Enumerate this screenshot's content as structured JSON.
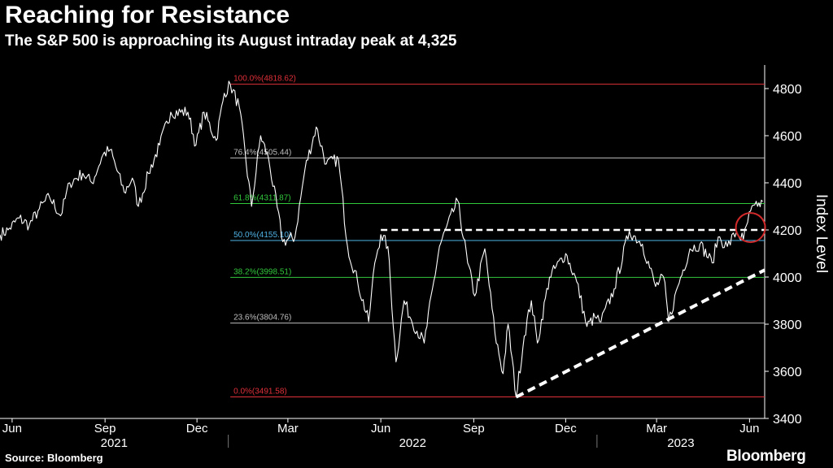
{
  "title": "Reaching for Resistance",
  "subtitle": "The S&P 500 is approaching its August intraday peak at 4,325",
  "source": "Source: Bloomberg",
  "logo": "Bloomberg",
  "colors": {
    "background": "#000000",
    "price_line": "#ffffff",
    "fib_0_100": "#e0303a",
    "fib_236_786": "#bdbdbd",
    "fib_382_618": "#32c83c",
    "fib_500": "#4fb3e6",
    "axis_text": "#ffffff"
  },
  "chart_data": {
    "type": "line",
    "title": "Reaching for Resistance",
    "ylabel": "Index Level",
    "xlabel": "",
    "ylim": [
      3400,
      4900
    ],
    "yticks": [
      3400,
      3600,
      3800,
      4000,
      4200,
      4400,
      4600,
      4800
    ],
    "ytick_labels": [
      "3400",
      "3600",
      "3800",
      "4000",
      "4200",
      "4400",
      "4600",
      "4800"
    ],
    "x_range": [
      "2021-05-20",
      "2023-06-16"
    ],
    "xticks": [
      {
        "date": "2021-06-01",
        "label": "Jun"
      },
      {
        "date": "2021-09-01",
        "label": "Sep"
      },
      {
        "date": "2021-12-01",
        "label": "Dec"
      },
      {
        "date": "2022-03-01",
        "label": "Mar"
      },
      {
        "date": "2022-06-01",
        "label": "Jun"
      },
      {
        "date": "2022-09-01",
        "label": "Sep"
      },
      {
        "date": "2022-12-01",
        "label": "Dec"
      },
      {
        "date": "2023-03-01",
        "label": "Mar"
      },
      {
        "date": "2023-06-01",
        "label": "Jun"
      }
    ],
    "year_labels": [
      {
        "label": "2021",
        "start": "2021-05-20",
        "end": "2022-01-01"
      },
      {
        "label": "2022",
        "start": "2022-01-01",
        "end": "2023-01-01"
      },
      {
        "label": "2023",
        "start": "2023-01-01",
        "end": "2023-06-16"
      }
    ],
    "series": [
      {
        "name": "S&P 500",
        "points": [
          [
            "2021-05-20",
            4180
          ],
          [
            "2021-05-28",
            4200
          ],
          [
            "2021-06-08",
            4250
          ],
          [
            "2021-06-18",
            4220
          ],
          [
            "2021-06-28",
            4290
          ],
          [
            "2021-07-08",
            4340
          ],
          [
            "2021-07-19",
            4260
          ],
          [
            "2021-07-28",
            4400
          ],
          [
            "2021-08-10",
            4440
          ],
          [
            "2021-08-19",
            4400
          ],
          [
            "2021-08-30",
            4520
          ],
          [
            "2021-09-06",
            4540
          ],
          [
            "2021-09-20",
            4360
          ],
          [
            "2021-09-28",
            4420
          ],
          [
            "2021-10-04",
            4300
          ],
          [
            "2021-10-14",
            4440
          ],
          [
            "2021-10-25",
            4560
          ],
          [
            "2021-11-05",
            4700
          ],
          [
            "2021-11-22",
            4700
          ],
          [
            "2021-11-30",
            4560
          ],
          [
            "2021-12-08",
            4700
          ],
          [
            "2021-12-20",
            4580
          ],
          [
            "2021-12-28",
            4780
          ],
          [
            "2022-01-03",
            4818
          ],
          [
            "2022-01-12",
            4720
          ],
          [
            "2022-01-24",
            4300
          ],
          [
            "2022-02-02",
            4600
          ],
          [
            "2022-02-10",
            4500
          ],
          [
            "2022-02-24",
            4150
          ],
          [
            "2022-03-08",
            4170
          ],
          [
            "2022-03-18",
            4460
          ],
          [
            "2022-03-29",
            4637
          ],
          [
            "2022-04-08",
            4480
          ],
          [
            "2022-04-20",
            4500
          ],
          [
            "2022-04-29",
            4130
          ],
          [
            "2022-05-09",
            3980
          ],
          [
            "2022-05-20",
            3810
          ],
          [
            "2022-05-26",
            4060
          ],
          [
            "2022-06-01",
            4180
          ],
          [
            "2022-06-08",
            4130
          ],
          [
            "2022-06-16",
            3640
          ],
          [
            "2022-06-24",
            3900
          ],
          [
            "2022-07-01",
            3820
          ],
          [
            "2022-07-14",
            3720
          ],
          [
            "2022-07-29",
            4130
          ],
          [
            "2022-08-16",
            4325
          ],
          [
            "2022-08-26",
            4060
          ],
          [
            "2022-09-02",
            3920
          ],
          [
            "2022-09-12",
            4120
          ],
          [
            "2022-09-22",
            3760
          ],
          [
            "2022-09-30",
            3590
          ],
          [
            "2022-10-05",
            3800
          ],
          [
            "2022-10-13",
            3491
          ],
          [
            "2022-10-21",
            3750
          ],
          [
            "2022-10-28",
            3900
          ],
          [
            "2022-11-03",
            3720
          ],
          [
            "2022-11-15",
            4000
          ],
          [
            "2022-12-01",
            4100
          ],
          [
            "2022-12-12",
            3980
          ],
          [
            "2022-12-22",
            3790
          ],
          [
            "2022-12-30",
            3830
          ],
          [
            "2023-01-05",
            3810
          ],
          [
            "2023-01-18",
            3950
          ],
          [
            "2023-02-02",
            4195
          ],
          [
            "2023-02-15",
            4140
          ],
          [
            "2023-02-28",
            3960
          ],
          [
            "2023-03-08",
            4000
          ],
          [
            "2023-03-13",
            3810
          ],
          [
            "2023-03-22",
            3960
          ],
          [
            "2023-04-03",
            4120
          ],
          [
            "2023-04-13",
            4140
          ],
          [
            "2023-04-25",
            4060
          ],
          [
            "2023-05-01",
            4170
          ],
          [
            "2023-05-10",
            4130
          ],
          [
            "2023-05-19",
            4190
          ],
          [
            "2023-05-26",
            4160
          ],
          [
            "2023-06-02",
            4280
          ],
          [
            "2023-06-09",
            4300
          ],
          [
            "2023-06-14",
            4320
          ]
        ]
      }
    ],
    "fibonacci_levels": [
      {
        "label": "100.0%(4818.62)",
        "value": 4818.62,
        "color": "#e0303a"
      },
      {
        "label": "76.4%(4505.44)",
        "value": 4505.44,
        "color": "#bdbdbd"
      },
      {
        "label": "61.8%(4311.87)",
        "value": 4311.87,
        "color": "#32c83c"
      },
      {
        "label": "50.0%(4155.10)",
        "value": 4155.1,
        "color": "#4fb3e6"
      },
      {
        "label": "38.2%(3998.51)",
        "value": 3998.51,
        "color": "#32c83c"
      },
      {
        "label": "23.6%(3804.76)",
        "value": 3804.76,
        "color": "#bdbdbd"
      },
      {
        "label": "0.0%(3491.58)",
        "value": 3491.58,
        "color": "#e0303a"
      }
    ],
    "fib_start_date": "2022-01-03",
    "resistance_line": {
      "value": 4200,
      "start": "2022-06-01",
      "end": "2023-06-16",
      "style": "dashed"
    },
    "support_trendline": {
      "start": [
        "2022-10-13",
        3491
      ],
      "end": [
        "2023-06-16",
        4030
      ],
      "style": "dashed"
    },
    "highlight_circle": {
      "date": "2023-06-02",
      "value": 4210,
      "color": "#d22a2a"
    }
  }
}
